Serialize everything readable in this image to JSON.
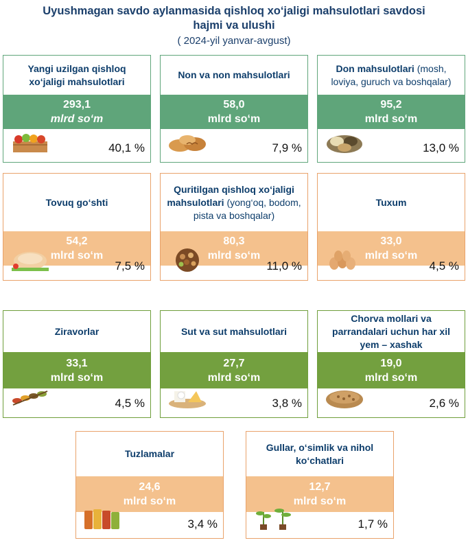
{
  "header": {
    "title": "Uyushmagan savdo aylanmasida qishloq xo‘jaligi mahsulotlari savdosi hajmi va ulushi",
    "subtitle": "( 2024-yil yanvar-avgust)"
  },
  "unit": "mlrd so‘m",
  "colors": {
    "green": "#5fa57a",
    "orange": "#f4c18d",
    "olive": "#73a03f",
    "title": "#1b3f6b"
  },
  "chart_data": {
    "type": "table",
    "title": "Uyushmagan savdo aylanmasida qishloq xo‘jaligi mahsulotlari savdosi hajmi va ulushi",
    "subtitle": "( 2024-yil yanvar-avgust)",
    "categories": [
      "Yangi uzilgan qishloq xo‘jaligi mahsulotlari",
      "Non va non mahsulotlari",
      "Don mahsulotlari (mosh, loviya, guruch va boshqalar)",
      "Tovuq go‘shti",
      "Quritilgan qishloq xo‘jaligi mahsulotlari (yong‘oq, bodom, pista va boshqalar)",
      "Tuxum",
      "Ziravorlar",
      "Sut va sut mahsulotlari",
      "Chorva mollari va parrandalari uchun har xil yem – xashak",
      "Tuzlamalar",
      "Gullar, o‘simlik va nihol ko‘chatlari"
    ],
    "series": [
      {
        "name": "mlrd so‘m",
        "values": [
          293.1,
          58.0,
          95.2,
          54.2,
          80.3,
          33.0,
          33.1,
          27.7,
          19.0,
          24.6,
          12.7
        ]
      },
      {
        "name": "%",
        "values": [
          40.1,
          7.9,
          13.0,
          7.5,
          11.0,
          4.5,
          4.5,
          3.8,
          2.6,
          3.4,
          1.7
        ]
      }
    ],
    "cards": [
      {
        "label_bold": "Yangi uzilgan qishloq xo‘jaligi mahsulotlari",
        "label_normal": "",
        "value_text": "293,1",
        "unit_text": "mlrd so‘m",
        "unit_italic": true,
        "pct_text": "40,1 %",
        "value": 293.1,
        "pct": 40.1,
        "color": "green",
        "icon": "vegetable-crate-icon"
      },
      {
        "label_bold": "Non va non mahsulotlari",
        "label_normal": "",
        "value_text": "58,0",
        "unit_text": "mlrd so‘m",
        "unit_italic": false,
        "pct_text": "7,9 %",
        "value": 58.0,
        "pct": 7.9,
        "color": "green",
        "icon": "bread-icon"
      },
      {
        "label_bold": "Don mahsulotlari",
        "label_normal": " (mosh, loviya, guruch va boshqalar)",
        "value_text": "95,2",
        "unit_text": "mlrd so‘m",
        "unit_italic": false,
        "pct_text": "13,0 %",
        "value": 95.2,
        "pct": 13.0,
        "color": "green",
        "icon": "grain-sacks-icon"
      },
      {
        "label_bold": "Tovuq go‘shti",
        "label_normal": "",
        "value_text": "54,2",
        "unit_text": "mlrd so‘m",
        "unit_italic": false,
        "pct_text": "7,5 %",
        "value": 54.2,
        "pct": 7.5,
        "color": "orange",
        "icon": "chicken-icon"
      },
      {
        "label_bold": "Quritilgan qishloq xo‘jaligi mahsulotlari",
        "label_normal": " (yong‘oq, bodom, pista va boshqalar)",
        "value_text": "80,3",
        "unit_text": "mlrd so‘m",
        "unit_italic": false,
        "pct_text": "11,0 %",
        "value": 80.3,
        "pct": 11.0,
        "color": "orange",
        "icon": "nuts-icon"
      },
      {
        "label_bold": "Tuxum",
        "label_normal": "",
        "value_text": "33,0",
        "unit_text": "mlrd so‘m",
        "unit_italic": false,
        "pct_text": "4,5 %",
        "value": 33.0,
        "pct": 4.5,
        "color": "orange",
        "icon": "eggs-icon"
      },
      {
        "label_bold": "Ziravorlar",
        "label_normal": "",
        "value_text": "33,1",
        "unit_text": "mlrd so‘m",
        "unit_italic": false,
        "pct_text": "4,5 %",
        "value": 33.1,
        "pct": 4.5,
        "color": "olive",
        "icon": "spices-icon"
      },
      {
        "label_bold": "Sut va sut mahsulotlari",
        "label_normal": "",
        "value_text": "27,7",
        "unit_text": "mlrd so‘m",
        "unit_italic": false,
        "pct_text": "3,8 %",
        "value": 27.7,
        "pct": 3.8,
        "color": "olive",
        "icon": "dairy-icon"
      },
      {
        "label_bold": "Chorva mollari va parrandalari uchun har xil yem – xashak",
        "label_normal": "",
        "value_text": "19,0",
        "unit_text": "mlrd so‘m",
        "unit_italic": false,
        "pct_text": "2,6 %",
        "value": 19.0,
        "pct": 2.6,
        "color": "olive",
        "icon": "feed-pellets-icon"
      },
      {
        "label_bold": "Tuzlamalar",
        "label_normal": "",
        "value_text": "24,6",
        "unit_text": "mlrd so‘m",
        "unit_italic": false,
        "pct_text": "3,4 %",
        "value": 24.6,
        "pct": 3.4,
        "color": "orange",
        "icon": "pickle-jars-icon"
      },
      {
        "label_bold": "Gullar, o‘simlik va nihol ko‘chatlari",
        "label_normal": "",
        "value_text": "12,7",
        "unit_text": "mlrd so‘m",
        "unit_italic": false,
        "pct_text": "1,7 %",
        "value": 12.7,
        "pct": 1.7,
        "color": "orange",
        "icon": "seedlings-icon"
      }
    ]
  }
}
